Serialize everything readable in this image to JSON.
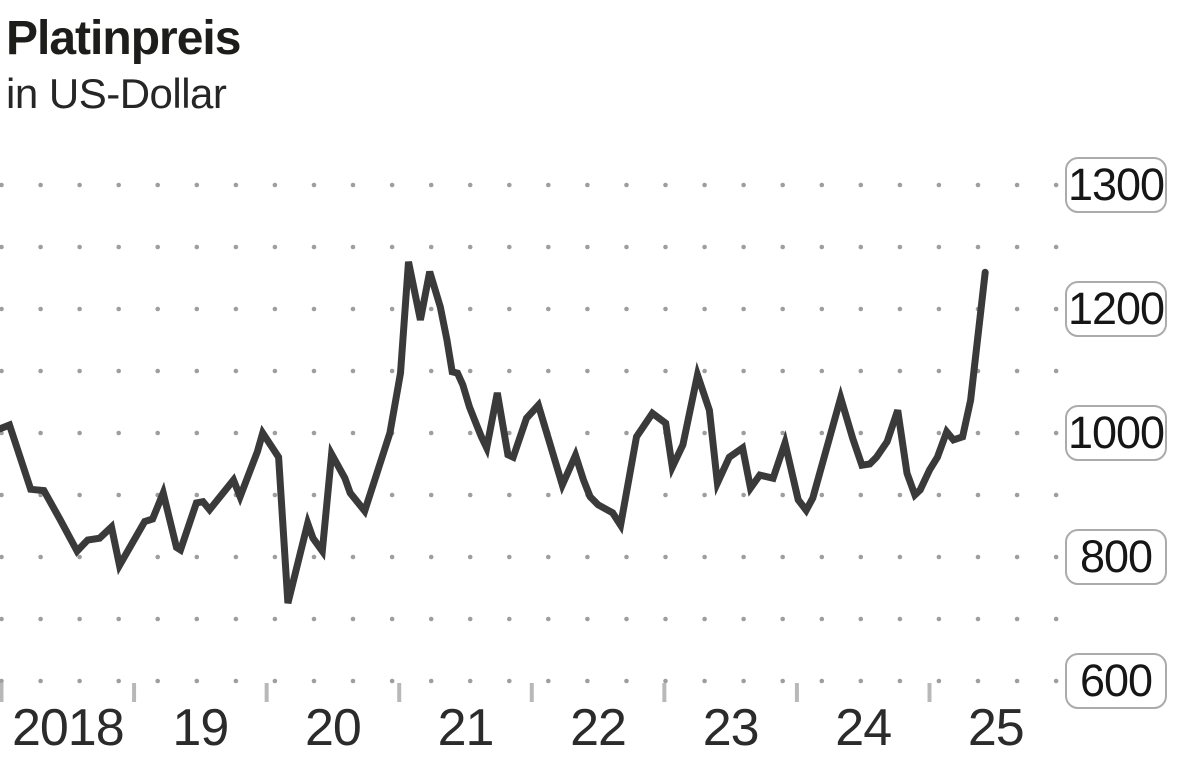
{
  "header": {
    "title": "Platinpreis",
    "subtitle": "in US-Dollar"
  },
  "colors": {
    "line": "#3a3a3a",
    "grid_dot": "#9e9e9e",
    "tick": "#b8b8b8",
    "label_box_border": "#ababab",
    "text": "#1d1d1b"
  },
  "chart_data": {
    "type": "line",
    "title": "Platinpreis",
    "subtitle": "in US-Dollar",
    "unit": "US-Dollar",
    "grid": "dotted",
    "legend": "none",
    "x_axis": {
      "tick_labels": [
        "2018",
        "19",
        "20",
        "21",
        "22",
        "23",
        "24",
        "25"
      ],
      "tick_years": [
        2018,
        2019,
        2020,
        2021,
        2022,
        2023,
        2024,
        2025
      ],
      "range": [
        2018,
        2025.5
      ]
    },
    "y_axis": {
      "side": "right",
      "tick_labels": [
        "1300",
        "1200",
        "1000",
        "800",
        "600"
      ],
      "tick_values": [
        1300,
        1200,
        1000,
        800,
        600
      ],
      "range": [
        600,
        1400
      ]
    },
    "series": [
      {
        "name": "Platinpreis in US-Dollar",
        "points": [
          [
            2017.99,
            1008
          ],
          [
            2018.06,
            1014
          ],
          [
            2018.22,
            910
          ],
          [
            2018.32,
            908
          ],
          [
            2018.44,
            862
          ],
          [
            2018.57,
            810
          ],
          [
            2018.65,
            828
          ],
          [
            2018.74,
            831
          ],
          [
            2018.83,
            849
          ],
          [
            2018.89,
            787
          ],
          [
            2019.08,
            858
          ],
          [
            2019.14,
            862
          ],
          [
            2019.22,
            904
          ],
          [
            2019.32,
            816
          ],
          [
            2019.35,
            812
          ],
          [
            2019.47,
            888
          ],
          [
            2019.52,
            890
          ],
          [
            2019.57,
            877
          ],
          [
            2019.75,
            925
          ],
          [
            2019.8,
            898
          ],
          [
            2019.93,
            971
          ],
          [
            2019.97,
            1001
          ],
          [
            2020.09,
            962
          ],
          [
            2020.16,
            726
          ],
          [
            2020.31,
            855
          ],
          [
            2020.35,
            831
          ],
          [
            2020.42,
            810
          ],
          [
            2020.49,
            967
          ],
          [
            2020.59,
            928
          ],
          [
            2020.63,
            904
          ],
          [
            2020.74,
            875
          ],
          [
            2020.93,
            1001
          ],
          [
            2021.01,
            1098
          ],
          [
            2021.07,
            1278
          ],
          [
            2021.16,
            1184
          ],
          [
            2021.23,
            1262
          ],
          [
            2021.31,
            1205
          ],
          [
            2021.36,
            1152
          ],
          [
            2021.4,
            1100
          ],
          [
            2021.44,
            1098
          ],
          [
            2021.48,
            1079
          ],
          [
            2021.53,
            1043
          ],
          [
            2021.59,
            1011
          ],
          [
            2021.62,
            995
          ],
          [
            2021.66,
            977
          ],
          [
            2021.74,
            1066
          ],
          [
            2021.82,
            966
          ],
          [
            2021.86,
            962
          ],
          [
            2021.96,
            1025
          ],
          [
            2022.05,
            1046
          ],
          [
            2022.23,
            917
          ],
          [
            2022.33,
            965
          ],
          [
            2022.39,
            925
          ],
          [
            2022.44,
            898
          ],
          [
            2022.5,
            885
          ],
          [
            2022.61,
            872
          ],
          [
            2022.67,
            852
          ],
          [
            2022.79,
            995
          ],
          [
            2022.91,
            1033
          ],
          [
            2023.01,
            1017
          ],
          [
            2023.06,
            946
          ],
          [
            2023.14,
            982
          ],
          [
            2023.25,
            1095
          ],
          [
            2023.34,
            1038
          ],
          [
            2023.4,
            920
          ],
          [
            2023.49,
            962
          ],
          [
            2023.59,
            977
          ],
          [
            2023.65,
            912
          ],
          [
            2023.72,
            933
          ],
          [
            2023.82,
            928
          ],
          [
            2023.91,
            985
          ],
          [
            2024.01,
            893
          ],
          [
            2024.07,
            876
          ],
          [
            2024.12,
            896
          ],
          [
            2024.33,
            1058
          ],
          [
            2024.42,
            993
          ],
          [
            2024.49,
            949
          ],
          [
            2024.55,
            951
          ],
          [
            2024.6,
            962
          ],
          [
            2024.68,
            987
          ],
          [
            2024.76,
            1038
          ],
          [
            2024.83,
            936
          ],
          [
            2024.89,
            901
          ],
          [
            2024.93,
            909
          ],
          [
            2025.0,
            941
          ],
          [
            2025.06,
            962
          ],
          [
            2025.13,
            1003
          ],
          [
            2025.18,
            990
          ],
          [
            2025.25,
            995
          ],
          [
            2025.31,
            1054
          ],
          [
            2025.42,
            1261
          ]
        ]
      }
    ]
  }
}
